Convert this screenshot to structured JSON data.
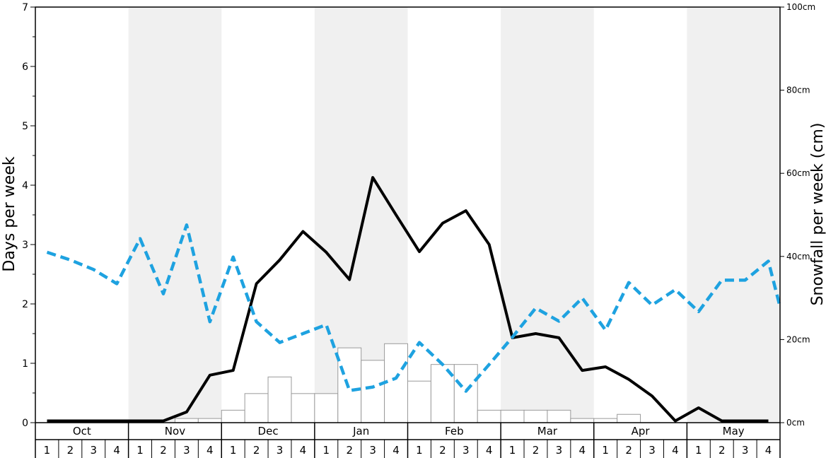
{
  "chart_data": {
    "type": "bar",
    "title": "",
    "ylabel_left": "Days per week",
    "ylabel_right": "Snowfall per week (cm)",
    "left_axis": {
      "ylim": [
        0,
        7
      ],
      "ticks": [
        "0",
        "1",
        "2",
        "3",
        "4",
        "5",
        "6",
        "7"
      ]
    },
    "right_axis": {
      "ylim": [
        0,
        100
      ],
      "ticks": [
        "0cm",
        "20cm",
        "40cm",
        "60cm",
        "80cm",
        "100cm"
      ]
    },
    "months": [
      "Oct",
      "Nov",
      "Dec",
      "Jan",
      "Feb",
      "Mar",
      "Apr",
      "May"
    ],
    "week_labels": [
      "1",
      "2",
      "3",
      "4"
    ],
    "shaded_months": [
      "Nov",
      "Jan",
      "Mar",
      "May"
    ],
    "grid": false,
    "colors": {
      "shade": "#f0f0f0",
      "dashed_line": "#1ea2e0",
      "solid_line": "#000000",
      "bar_edge": "#9a9a9a",
      "bar_fill": "#ffffff"
    },
    "snowfall_bars_cm": [
      0,
      0,
      0,
      0,
      0,
      0,
      1,
      1,
      3,
      7,
      11,
      7,
      7,
      18,
      15,
      19,
      10,
      14,
      14,
      3,
      3,
      3,
      3,
      1,
      1,
      2,
      0,
      0,
      0,
      0,
      0,
      0
    ],
    "series": [
      {
        "style": "solid",
        "axis": "left",
        "values": [
          0.03,
          0.03,
          0.03,
          0.03,
          0.03,
          0.03,
          0.18,
          0.8,
          0.88,
          2.34,
          2.74,
          3.22,
          2.87,
          2.41,
          4.13,
          3.5,
          2.88,
          3.36,
          3.57,
          3.0,
          1.43,
          1.5,
          1.43,
          0.88,
          0.94,
          0.73,
          0.45,
          0.03,
          0.25,
          0.03,
          0.03,
          0.03
        ]
      },
      {
        "style": "dashed",
        "axis": "left",
        "values": [
          2.87,
          2.74,
          2.58,
          2.34,
          3.1,
          2.17,
          3.33,
          1.7,
          2.79,
          1.7,
          1.35,
          1.5,
          1.65,
          0.54,
          0.6,
          0.75,
          1.35,
          0.98,
          0.53,
          0.98,
          1.44,
          1.93,
          1.71,
          2.1,
          1.56,
          2.36,
          1.98,
          2.24,
          1.87,
          2.4,
          2.4,
          2.72
        ]
      }
    ],
    "series_tail_end_value": 1.95
  }
}
